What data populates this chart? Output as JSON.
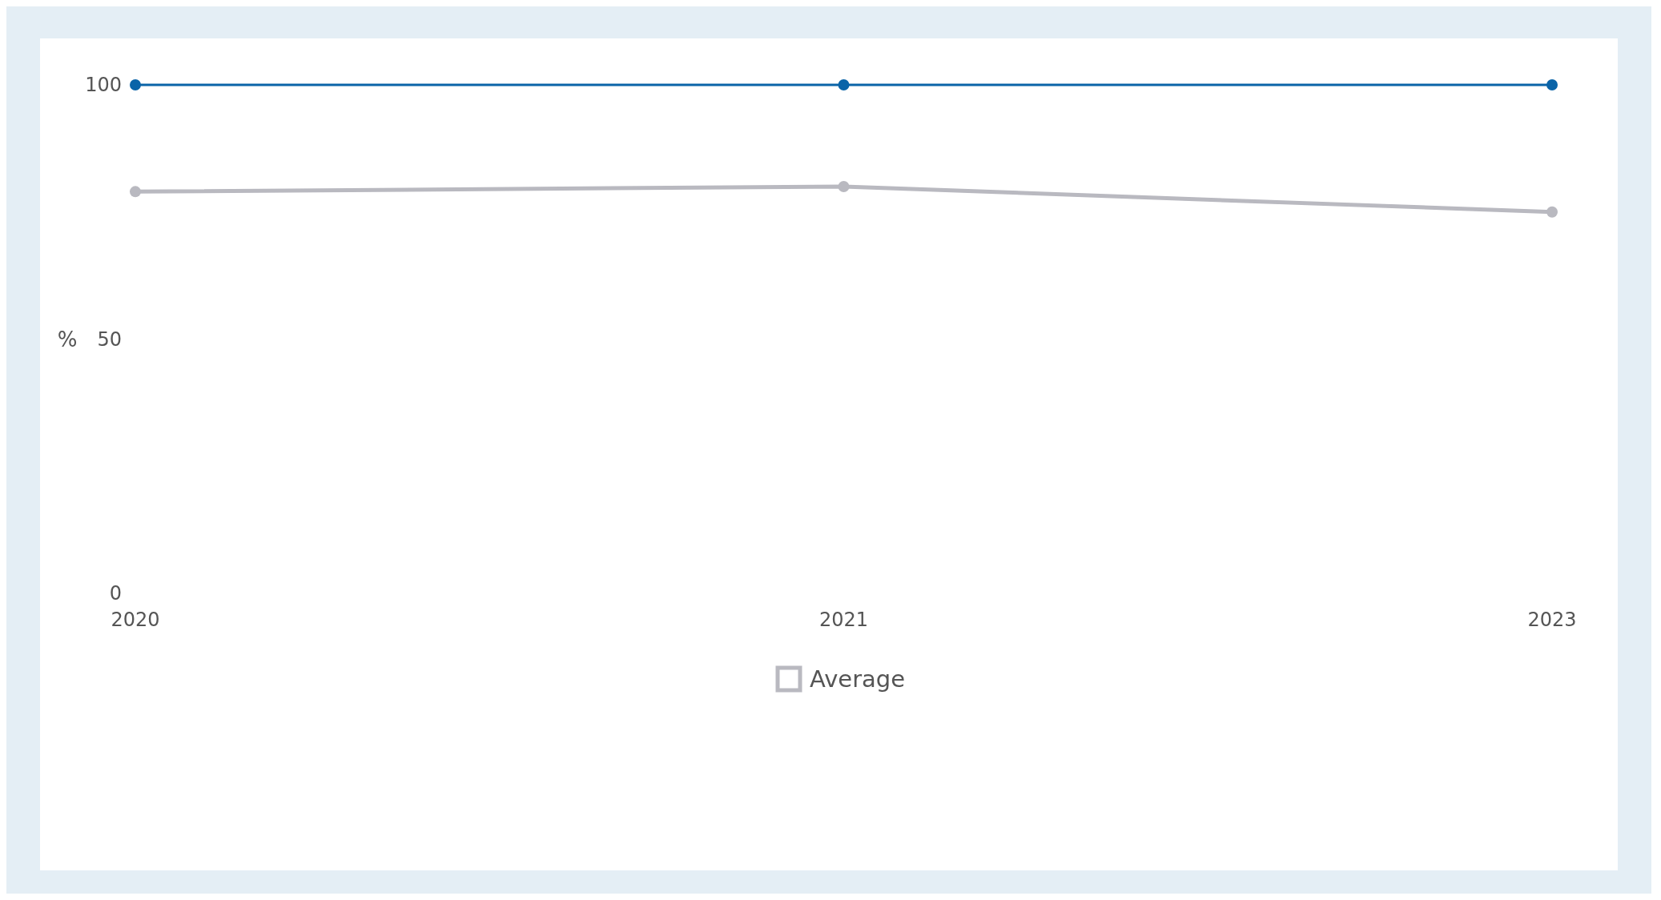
{
  "chart_data": {
    "type": "line",
    "ylabel": "%",
    "categories": [
      "2020",
      "2021",
      "2023"
    ],
    "series": [
      {
        "color": "#0a64a8",
        "values": [
          100,
          100,
          100
        ]
      },
      {
        "name": "Average",
        "color": "#b9b9c0",
        "values": [
          79,
          80,
          75
        ]
      }
    ],
    "ylim": [
      0,
      100
    ],
    "yticks": [
      0,
      50,
      100
    ],
    "grid": false,
    "legend": "bottom",
    "marker": "circle",
    "line_style": "solid"
  }
}
